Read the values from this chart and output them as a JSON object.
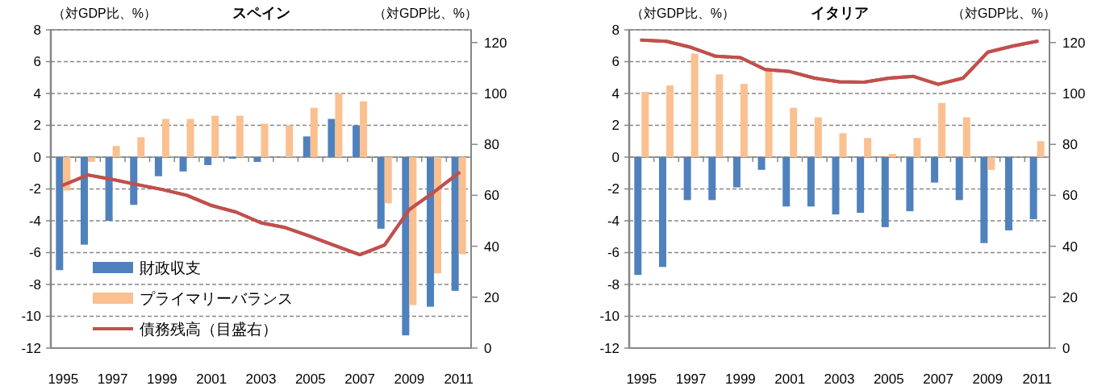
{
  "chart_data": [
    {
      "type": "bar",
      "title": "スペイン",
      "ylabel": "（対GDP比、%）",
      "y2label": "（対GDP比、%）",
      "categories": [
        "1995",
        null,
        "1997",
        null,
        "1999",
        null,
        "2001",
        null,
        "2003",
        null,
        "2005",
        null,
        "2007",
        null,
        "2009",
        null,
        "2011"
      ],
      "series": [
        {
          "name": "財政収支",
          "color": "#4f81bd",
          "values": [
            -7.1,
            -5.5,
            -4.0,
            -3.0,
            -1.2,
            -0.9,
            -0.5,
            -0.1,
            -0.3,
            0.0,
            1.3,
            2.4,
            2.0,
            -4.5,
            -11.2,
            -9.4,
            -8.4
          ]
        },
        {
          "name": "プライマリーバランス",
          "color": "#fac090",
          "values": [
            -2.1,
            -0.3,
            0.7,
            1.25,
            2.4,
            2.4,
            2.6,
            2.6,
            2.1,
            2.0,
            3.1,
            4.0,
            3.5,
            -2.9,
            -9.3,
            -7.3,
            -6.1
          ]
        },
        {
          "name": "債務残高（目盛右）",
          "type": "line",
          "axis": "y2",
          "color": "#c0504d",
          "values": [
            64,
            68,
            66.2,
            64.2,
            62.3,
            60,
            56,
            53.4,
            49.2,
            47.3,
            43.9,
            40.2,
            36.7,
            40.5,
            54.4,
            61.3,
            68.8
          ]
        }
      ],
      "ylim": [
        -12,
        8
      ],
      "yticks": [
        -12,
        -10,
        -8,
        -6,
        -4,
        -2,
        0,
        2,
        4,
        6,
        8
      ],
      "y2lim": [
        0,
        125
      ],
      "y2ticks": [
        0,
        20,
        40,
        60,
        80,
        100,
        120
      ],
      "grid": "y",
      "legend": "bottom left"
    },
    {
      "type": "bar",
      "title": "イタリア",
      "ylabel": "（対GDP比、%）",
      "y2label": "（対GDP比、%）",
      "categories": [
        "1995",
        null,
        "1997",
        null,
        "1999",
        null,
        "2001",
        null,
        "2003",
        null,
        "2005",
        null,
        "2007",
        null,
        "2009",
        null,
        "2011"
      ],
      "series": [
        {
          "color": "#4f81bd",
          "values": [
            -7.4,
            -6.9,
            -2.7,
            -2.7,
            -1.9,
            -0.8,
            -3.1,
            -3.1,
            -3.6,
            -3.5,
            -4.4,
            -3.4,
            -1.6,
            -2.7,
            -5.4,
            -4.6,
            -3.9
          ]
        },
        {
          "color": "#fac090",
          "values": [
            4.1,
            4.5,
            6.5,
            5.2,
            4.6,
            5.4,
            3.1,
            2.5,
            1.5,
            1.2,
            0.2,
            1.2,
            3.4,
            2.5,
            -0.8,
            null,
            1.0
          ]
        },
        {
          "type": "line",
          "axis": "y2",
          "color": "#c0504d",
          "values": [
            121,
            120.5,
            118.1,
            114.6,
            114.1,
            109.4,
            108.6,
            106,
            104.6,
            104.4,
            106,
            106.7,
            103.6,
            106,
            116.2,
            118.6,
            120.5
          ]
        }
      ],
      "ylim": [
        -12,
        8
      ],
      "yticks": [
        -12,
        -10,
        -8,
        -6,
        -4,
        -2,
        0,
        2,
        4,
        6,
        8
      ],
      "y2lim": [
        0,
        125
      ],
      "y2ticks": [
        0,
        20,
        40,
        60,
        80,
        100,
        120
      ],
      "grid": "y"
    }
  ]
}
